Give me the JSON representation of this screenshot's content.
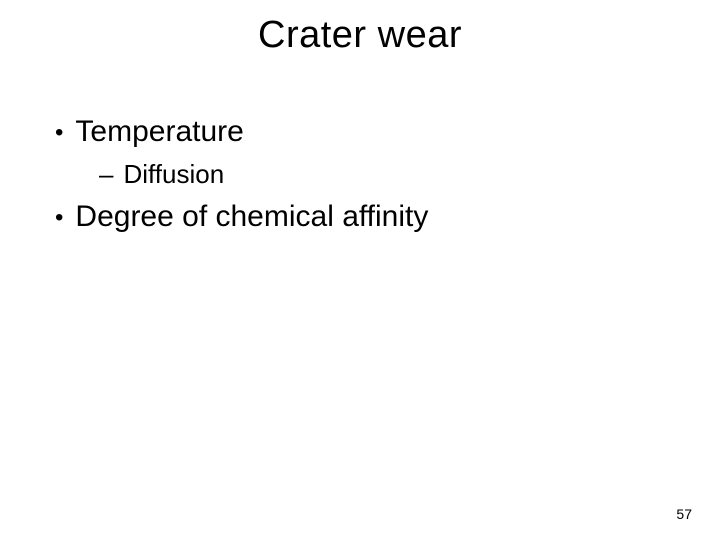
{
  "slide": {
    "title": "Crater wear",
    "bullets": [
      {
        "level": 1,
        "text": "Temperature"
      },
      {
        "level": 2,
        "text": "Diffusion"
      },
      {
        "level": 1,
        "text": "Degree of chemical affinity"
      }
    ],
    "page_number": "57",
    "colors": {
      "background": "#ffffff",
      "text": "#000000"
    },
    "typography": {
      "title_fontsize": 38,
      "bullet_l1_fontsize": 30,
      "bullet_l2_fontsize": 26,
      "page_number_fontsize": 14,
      "font_family": "Arial"
    },
    "markers": {
      "level1": "•",
      "level2": "–"
    }
  }
}
